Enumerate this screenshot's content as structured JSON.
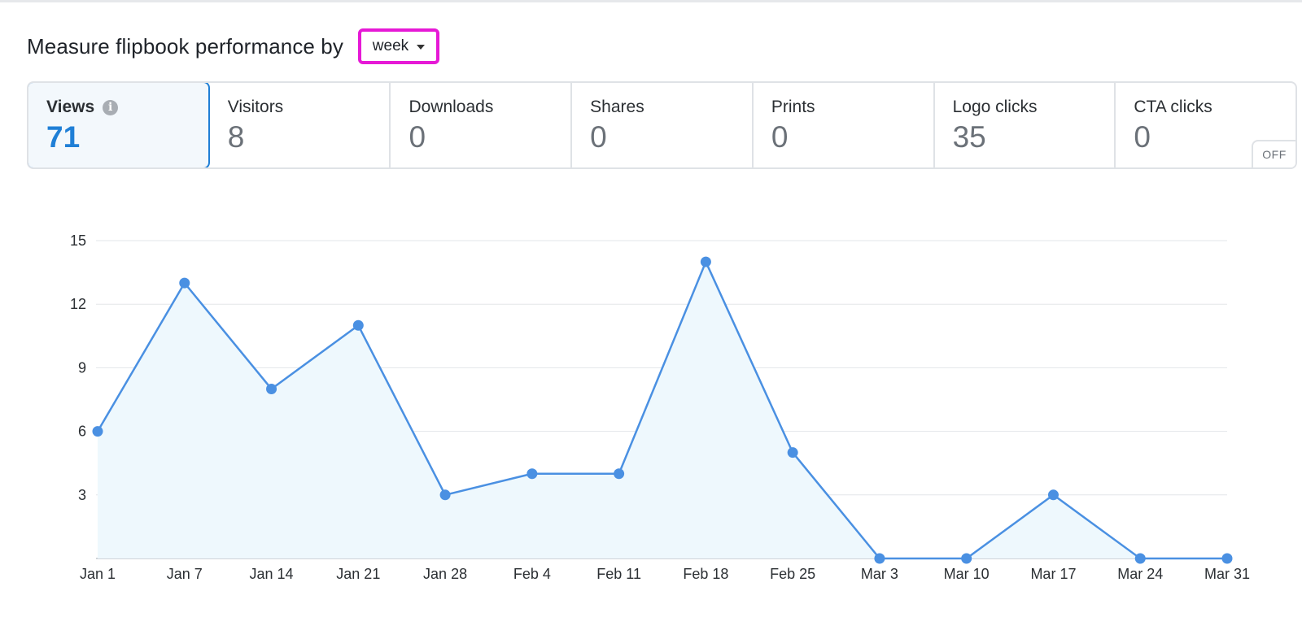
{
  "header": {
    "title": "Measure flipbook performance by",
    "period_select": {
      "value": "week"
    }
  },
  "metrics": [
    {
      "label": "Views",
      "value": "71",
      "active": true,
      "info": true
    },
    {
      "label": "Visitors",
      "value": "8"
    },
    {
      "label": "Downloads",
      "value": "0"
    },
    {
      "label": "Shares",
      "value": "0"
    },
    {
      "label": "Prints",
      "value": "0"
    },
    {
      "label": "Logo clicks",
      "value": "35"
    },
    {
      "label": "CTA clicks",
      "value": "0",
      "badge": "OFF"
    }
  ],
  "colors": {
    "accent": "#1f7fd6",
    "line": "#4a90e2",
    "area": "#eef8fd",
    "highlight": "#e619d6",
    "grid": "#e3e6e9"
  },
  "icons": {
    "info": "info-icon",
    "dropdown": "caret-down-icon"
  },
  "chart_data": {
    "type": "area",
    "categories": [
      "Jan 1",
      "Jan 7",
      "Jan 14",
      "Jan 21",
      "Jan 28",
      "Feb 4",
      "Feb 11",
      "Feb 18",
      "Feb 25",
      "Mar 3",
      "Mar 10",
      "Mar 17",
      "Mar 24",
      "Mar 31"
    ],
    "series": [
      {
        "values": [
          6,
          13,
          8,
          11,
          3,
          4,
          4,
          14,
          5,
          0,
          0,
          3,
          0,
          0
        ]
      }
    ],
    "yticks": [
      3,
      6,
      9,
      12,
      15
    ],
    "ylim": [
      0,
      15
    ],
    "grid": true,
    "legend": "none"
  }
}
